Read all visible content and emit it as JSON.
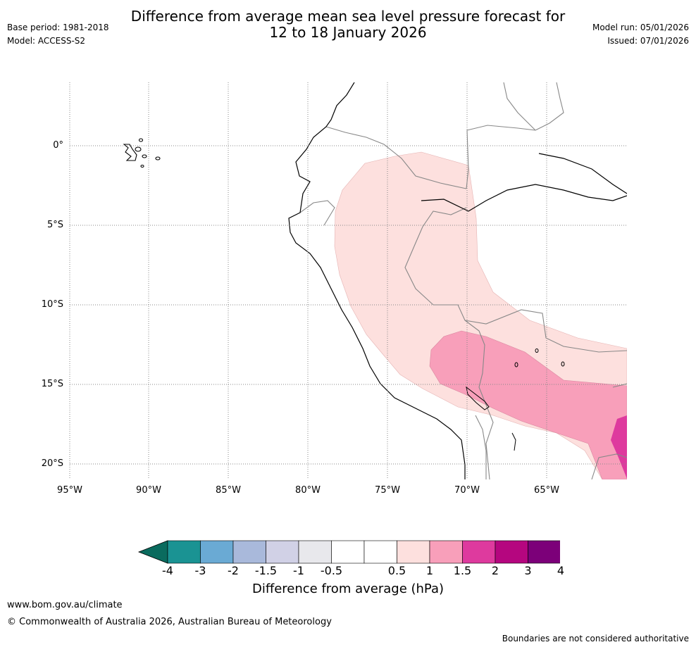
{
  "header": {
    "base_period": "Base period: 1981-2018",
    "model": "Model: ACCESS-S2",
    "title_line1": "Difference from average mean sea level pressure forecast for",
    "title_line2": "12 to 18 January 2026",
    "model_run": "Model run: 05/01/2026",
    "issued": "Issued: 07/01/2026"
  },
  "map": {
    "lat_labels": [
      "0°",
      "5°S",
      "10°S",
      "15°S",
      "20°S"
    ],
    "lon_labels": [
      "95°W",
      "90°W",
      "85°W",
      "80°W",
      "75°W",
      "70°W",
      "65°W"
    ],
    "anomaly_regions": [
      {
        "class": "0.5 to 1",
        "color": "#fde0de"
      },
      {
        "class": "1 to 1.5",
        "color": "#f89fba"
      },
      {
        "class": "1.5 to 2",
        "color": "#de3a9e"
      }
    ]
  },
  "colorbar": {
    "colors": [
      "#0a6b5e",
      "#1a9393",
      "#6aaad4",
      "#a9b9db",
      "#d1d1e6",
      "#e8e8ec",
      "#ffffff",
      "#ffffff",
      "#fde0de",
      "#f89fba",
      "#de3a9e",
      "#b5067f",
      "#7c0079",
      "#450058"
    ],
    "ticks": [
      "-4",
      "-3",
      "-2",
      "-1.5",
      "-1",
      "-0.5",
      "0.5",
      "1",
      "1.5",
      "2",
      "3",
      "4"
    ],
    "label": "Difference from average (hPa)"
  },
  "footer": {
    "url": "www.bom.gov.au/climate",
    "copyright": "© Commonwealth of Australia 2026, Australian Bureau of Meteorology",
    "disclaimer": "Boundaries are not considered authoritative"
  }
}
